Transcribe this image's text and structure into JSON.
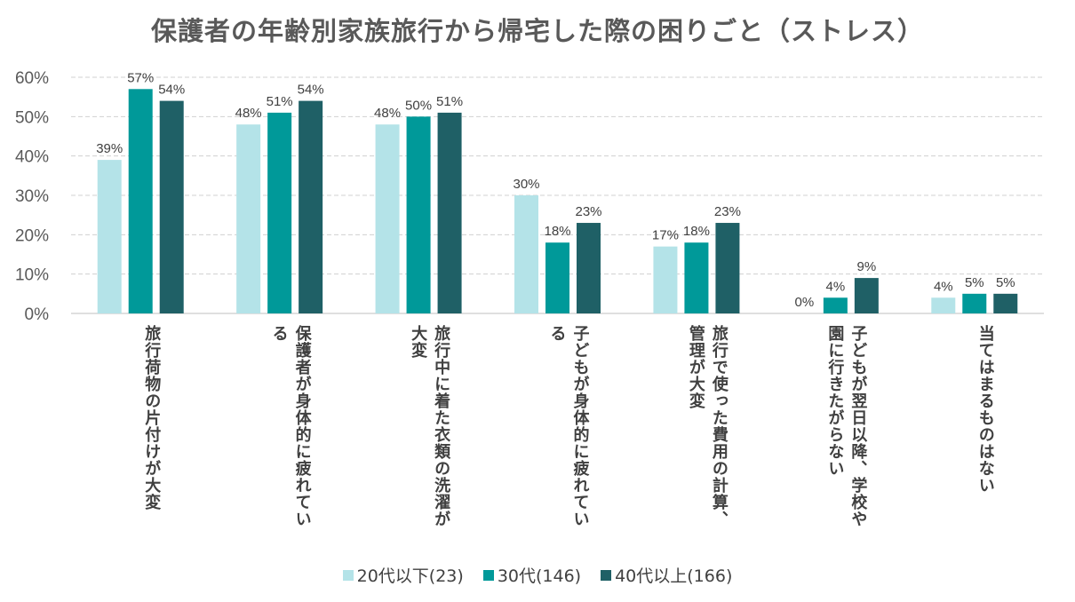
{
  "chart_data": {
    "type": "bar",
    "title": "保護者の年齢別家族旅行から帰宅した際の困りごと（ストレス）",
    "categories": [
      "旅行荷物の片付けが大変",
      "保護者が身体的に疲れている",
      "旅行中に着た衣類の洗濯が大変",
      "子どもが身体的に疲れている",
      "旅行で使った費用の計算、管理が大変",
      "子どもが翌日以降、学校や園に行きたがらない",
      "当てはまるものはない"
    ],
    "series": [
      {
        "name": "20代以下(23)",
        "color": "#b4e3e8",
        "values": [
          39,
          48,
          48,
          30,
          17,
          0,
          4
        ]
      },
      {
        "name": "30代(146)",
        "color": "#009999",
        "values": [
          57,
          51,
          50,
          18,
          18,
          4,
          5
        ]
      },
      {
        "name": "40代以上(166)",
        "color": "#1f6066",
        "values": [
          54,
          54,
          51,
          23,
          23,
          9,
          5
        ]
      }
    ],
    "ylim": [
      0,
      60
    ],
    "yticks": [
      "0%",
      "10%",
      "20%",
      "30%",
      "40%",
      "50%",
      "60%"
    ],
    "grid": true,
    "legend": "bottom",
    "data_label_suffix": "%"
  }
}
